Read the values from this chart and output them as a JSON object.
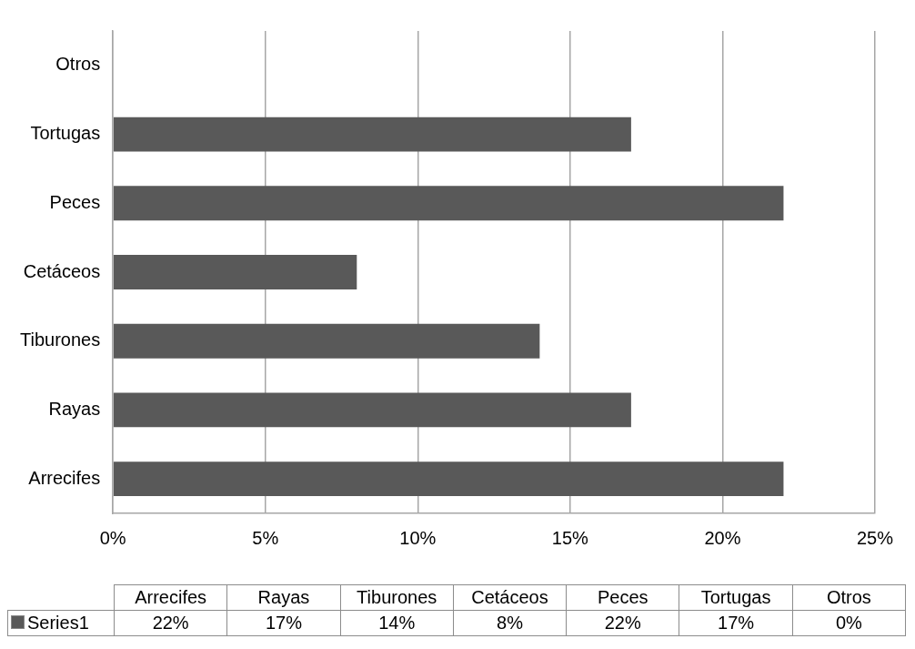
{
  "chart_data": {
    "type": "bar",
    "orientation": "horizontal",
    "categories": [
      "Otros",
      "Tortugas",
      "Peces",
      "Cetáceos",
      "Tiburones",
      "Rayas",
      "Arrecifes"
    ],
    "series": [
      {
        "name": "Series1",
        "color": "#595959",
        "values": [
          0,
          17,
          22,
          8,
          14,
          17,
          22
        ]
      }
    ],
    "value_labels": [
      "0%",
      "17%",
      "22%",
      "8%",
      "14%",
      "17%",
      "22%"
    ],
    "xlim": [
      0,
      25
    ],
    "xticks": [
      {
        "value": 0,
        "label": "0%"
      },
      {
        "value": 5,
        "label": "5%"
      },
      {
        "value": 10,
        "label": "10%"
      },
      {
        "value": 15,
        "label": "15%"
      },
      {
        "value": 20,
        "label": "20%"
      },
      {
        "value": 25,
        "label": "25%"
      }
    ],
    "grid": "x",
    "legend": "bottom"
  }
}
